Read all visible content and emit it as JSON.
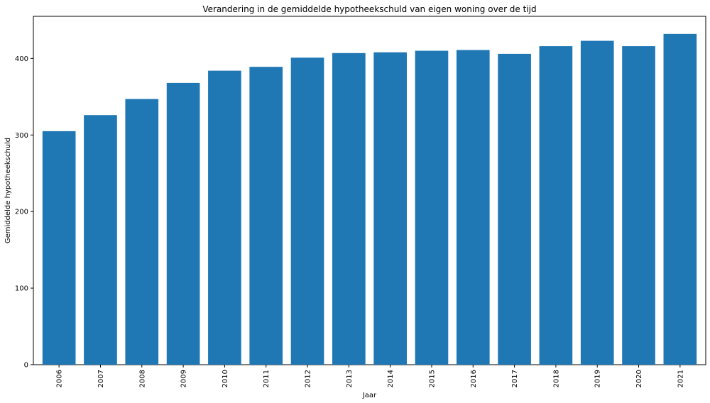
{
  "chart_data": {
    "type": "bar",
    "title": "Verandering in de gemiddelde hypotheekschuld van eigen woning over de tijd",
    "xlabel": "Jaar",
    "ylabel": "Gemiddelde hypotheekschuld",
    "categories": [
      "2006",
      "2007",
      "2008",
      "2009",
      "2010",
      "2011",
      "2012",
      "2013",
      "2014",
      "2015",
      "2016",
      "2017",
      "2018",
      "2019",
      "2020",
      "2021"
    ],
    "values": [
      305,
      326,
      347,
      368,
      384,
      389,
      401,
      407,
      408,
      410,
      411,
      406,
      416,
      423,
      416,
      432
    ],
    "ylim": [
      0,
      455
    ],
    "yticks": [
      0,
      100,
      200,
      300,
      400
    ],
    "grid": false,
    "bar_color": "#1f77b4"
  }
}
